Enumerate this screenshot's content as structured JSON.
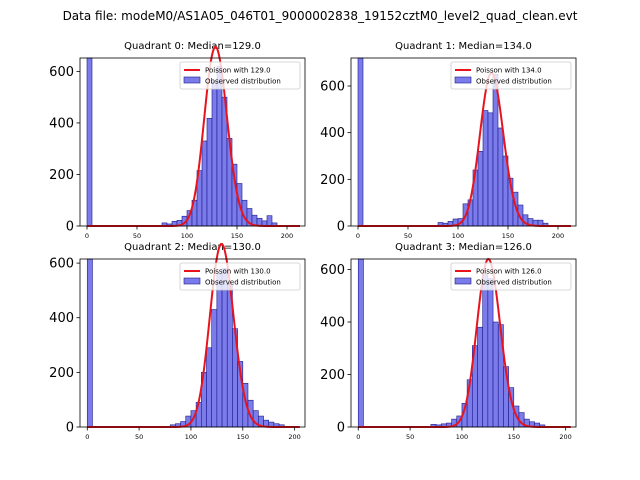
{
  "suptitle": "Data file: modeM0/AS1A05_046T01_9000002838_19152cztM0_level2_quad_clean.evt",
  "colors": {
    "bar_fill": "#7b7bea",
    "bar_edge": "#1b1b8f",
    "poisson_line": "#e8141d",
    "axes": "#000000"
  },
  "chart_data": [
    {
      "type": "bar",
      "title": "Quadrant 0: Median=129.0",
      "legend": [
        "Poisson with 129.0",
        "Observed distribution"
      ],
      "legend_position": "top-right",
      "median": 129.0,
      "xlim": [
        -7,
        218
      ],
      "ylim": [
        0,
        652
      ],
      "yticks": [
        0,
        200,
        400,
        600
      ],
      "xticks": [
        0,
        50,
        100,
        150,
        200
      ],
      "xtick_labels": [
        "0",
        "50",
        "100",
        "150",
        "200"
      ],
      "ytick_labels": [
        "0",
        "200",
        "400",
        "600"
      ],
      "bin_width": 5,
      "bins": [
        [
          0,
          5,
          652
        ],
        [
          75,
          80,
          12
        ],
        [
          80,
          85,
          8
        ],
        [
          85,
          90,
          18
        ],
        [
          90,
          95,
          22
        ],
        [
          95,
          100,
          38
        ],
        [
          100,
          105,
          60
        ],
        [
          105,
          110,
          100
        ],
        [
          110,
          115,
          215
        ],
        [
          115,
          120,
          330
        ],
        [
          120,
          125,
          418
        ],
        [
          125,
          130,
          560
        ],
        [
          130,
          135,
          620
        ],
        [
          135,
          140,
          500
        ],
        [
          140,
          145,
          340
        ],
        [
          145,
          150,
          240
        ],
        [
          150,
          155,
          165
        ],
        [
          155,
          160,
          100
        ],
        [
          160,
          165,
          68
        ],
        [
          165,
          170,
          42
        ],
        [
          170,
          175,
          30
        ],
        [
          175,
          180,
          20
        ],
        [
          180,
          185,
          40
        ],
        [
          185,
          190,
          12
        ]
      ]
    },
    {
      "type": "bar",
      "title": "Quadrant 1: Median=134.0",
      "legend": [
        "Poisson with 134.0",
        "Observed distribution"
      ],
      "legend_position": "top-right",
      "median": 134.0,
      "xlim": [
        -7,
        218
      ],
      "ylim": [
        0,
        720
      ],
      "yticks": [
        0,
        200,
        400,
        600
      ],
      "xticks": [
        0,
        50,
        100,
        150,
        200
      ],
      "xtick_labels": [
        "0",
        "50",
        "100",
        "150",
        "200"
      ],
      "ytick_labels": [
        "0",
        "200",
        "400",
        "600"
      ],
      "bin_width": 5,
      "bins": [
        [
          0,
          5,
          720
        ],
        [
          80,
          85,
          15
        ],
        [
          85,
          90,
          12
        ],
        [
          90,
          95,
          20
        ],
        [
          95,
          100,
          30
        ],
        [
          100,
          105,
          32
        ],
        [
          105,
          110,
          95
        ],
        [
          110,
          115,
          112
        ],
        [
          115,
          120,
          240
        ],
        [
          120,
          125,
          320
        ],
        [
          125,
          130,
          495
        ],
        [
          130,
          135,
          485
        ],
        [
          135,
          140,
          650
        ],
        [
          140,
          145,
          420
        ],
        [
          145,
          150,
          300
        ],
        [
          150,
          155,
          205
        ],
        [
          155,
          160,
          145
        ],
        [
          160,
          165,
          90
        ],
        [
          165,
          170,
          48
        ],
        [
          170,
          175,
          32
        ],
        [
          175,
          180,
          25
        ],
        [
          180,
          185,
          25
        ],
        [
          185,
          190,
          12
        ]
      ]
    },
    {
      "type": "bar",
      "title": "Quadrant 2: Median=130.0",
      "legend": [
        "Poisson with 130.0",
        "Observed distribution"
      ],
      "legend_position": "top-right",
      "median": 130.0,
      "xlim": [
        -7,
        210
      ],
      "ylim": [
        0,
        615
      ],
      "yticks": [
        0,
        200,
        400,
        600
      ],
      "xticks": [
        0,
        50,
        100,
        150,
        200
      ],
      "xtick_labels": [
        "0",
        "50",
        "100",
        "150",
        "200"
      ],
      "ytick_labels": [
        "0",
        "200",
        "400",
        "600"
      ],
      "bin_width": 5,
      "bins": [
        [
          0,
          5,
          615
        ],
        [
          80,
          85,
          8
        ],
        [
          85,
          90,
          12
        ],
        [
          90,
          95,
          20
        ],
        [
          95,
          100,
          40
        ],
        [
          100,
          105,
          60
        ],
        [
          105,
          110,
          90
        ],
        [
          110,
          115,
          200
        ],
        [
          115,
          120,
          290
        ],
        [
          120,
          125,
          430
        ],
        [
          125,
          130,
          560
        ],
        [
          130,
          135,
          580
        ],
        [
          135,
          140,
          520
        ],
        [
          140,
          145,
          360
        ],
        [
          145,
          150,
          240
        ],
        [
          150,
          155,
          160
        ],
        [
          155,
          160,
          98
        ],
        [
          160,
          165,
          60
        ],
        [
          165,
          170,
          40
        ],
        [
          170,
          175,
          25
        ],
        [
          175,
          180,
          18
        ],
        [
          180,
          185,
          12
        ],
        [
          185,
          190,
          8
        ]
      ]
    },
    {
      "type": "bar",
      "title": "Quadrant 3: Median=126.0",
      "legend": [
        "Poisson with 126.0",
        "Observed distribution"
      ],
      "legend_position": "top-right",
      "median": 126.0,
      "xlim": [
        -7,
        210
      ],
      "ylim": [
        0,
        640
      ],
      "yticks": [
        0,
        200,
        400,
        600
      ],
      "xticks": [
        0,
        50,
        100,
        150,
        200
      ],
      "xtick_labels": [
        "0",
        "50",
        "100",
        "150",
        "200"
      ],
      "ytick_labels": [
        "0",
        "200",
        "400",
        "600"
      ],
      "bin_width": 5,
      "bins": [
        [
          0,
          5,
          640
        ],
        [
          70,
          75,
          10
        ],
        [
          75,
          80,
          8
        ],
        [
          80,
          85,
          12
        ],
        [
          85,
          90,
          15
        ],
        [
          90,
          95,
          30
        ],
        [
          95,
          100,
          42
        ],
        [
          100,
          105,
          90
        ],
        [
          105,
          110,
          180
        ],
        [
          110,
          115,
          310
        ],
        [
          115,
          120,
          380
        ],
        [
          120,
          125,
          580
        ],
        [
          125,
          130,
          565
        ],
        [
          130,
          135,
          400
        ],
        [
          135,
          140,
          390
        ],
        [
          140,
          145,
          230
        ],
        [
          145,
          150,
          150
        ],
        [
          150,
          155,
          80
        ],
        [
          155,
          160,
          55
        ],
        [
          160,
          165,
          30
        ],
        [
          165,
          170,
          20
        ],
        [
          170,
          175,
          15
        ],
        [
          175,
          180,
          8
        ]
      ]
    }
  ]
}
